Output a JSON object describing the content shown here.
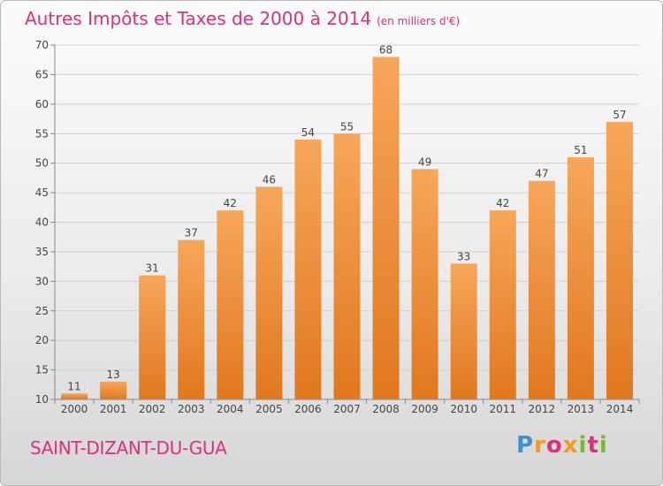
{
  "title": {
    "main": "Autres Impôts et Taxes de 2000 à 2014",
    "unit": "(en milliers d'€)"
  },
  "commune": "SAINT-DIZANT-DU-GUA",
  "logo": {
    "letters": [
      "P",
      "r",
      "o",
      "x",
      "i",
      "t",
      "i"
    ]
  },
  "colors": {
    "title": "#e0307a",
    "bar_top": "#f7a65a",
    "bar_bottom": "#e0781e",
    "grid": "#cfcfcf"
  },
  "chart_data": {
    "type": "bar",
    "title": "Autres Impôts et Taxes de 2000 à 2014",
    "subtitle": "(en milliers d'€)",
    "xlabel": "",
    "ylabel": "",
    "categories": [
      "2000",
      "2001",
      "2002",
      "2003",
      "2004",
      "2005",
      "2006",
      "2007",
      "2008",
      "2009",
      "2010",
      "2011",
      "2012",
      "2013",
      "2014"
    ],
    "values": [
      11,
      13,
      31,
      37,
      42,
      46,
      54,
      55,
      68,
      49,
      33,
      42,
      47,
      51,
      57
    ],
    "ylim": [
      10,
      70
    ],
    "yticks": [
      10,
      15,
      20,
      25,
      30,
      35,
      40,
      45,
      50,
      55,
      60,
      65,
      70
    ],
    "grid": true,
    "data_labels": true
  }
}
